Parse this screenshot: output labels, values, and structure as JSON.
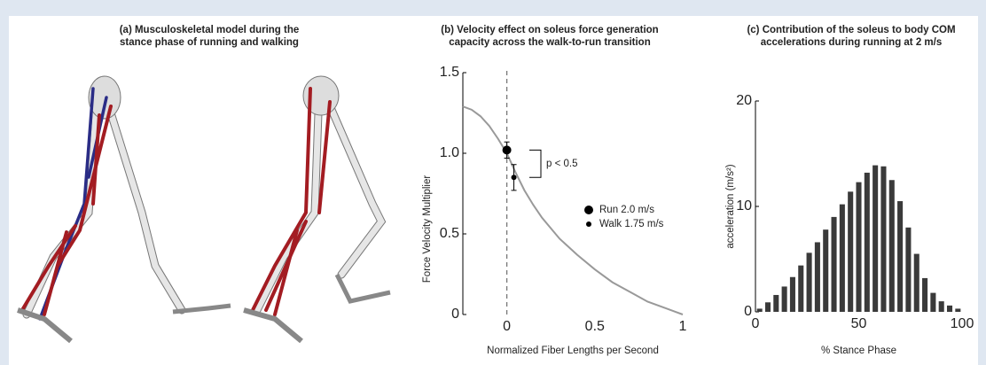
{
  "figure_a": {
    "title": [
      "(a) Musculoskeletal model during the",
      "stance phase of running and walking"
    ]
  },
  "chart_data": [
    {
      "type": "line",
      "title": [
        "(b) Velocity effect on soleus force generation",
        "capacity across the walk-to-run transition"
      ],
      "xlabel": "Normalized Fiber Lengths per Second",
      "ylabel": "Force Velocity Multiplier",
      "xlim": [
        -0.25,
        1
      ],
      "xticks": [
        0,
        0.5,
        1
      ],
      "ylim": [
        0,
        1.5
      ],
      "yticks": [
        0,
        0.5,
        {
          "value": 1,
          "label": "1.0"
        },
        1.5
      ],
      "curve": {
        "color": "#999999",
        "x": [
          -0.25,
          -0.2,
          -0.15,
          -0.1,
          -0.05,
          0,
          0.05,
          0.1,
          0.15,
          0.2,
          0.3,
          0.4,
          0.5,
          0.6,
          0.7,
          0.8,
          0.9,
          1.0
        ],
        "values": [
          1.29,
          1.27,
          1.23,
          1.17,
          1.09,
          1.0,
          0.88,
          0.77,
          0.68,
          0.6,
          0.47,
          0.37,
          0.28,
          0.2,
          0.14,
          0.08,
          0.04,
          0
        ]
      },
      "reference_x": 0,
      "series": [
        {
          "name": "Run 2.0 m/s",
          "color": "#000000",
          "x": [
            0
          ],
          "values": [
            1.02
          ],
          "errors": [
            0.05
          ]
        },
        {
          "name": "Walk 1.75 m/s",
          "color": "#000000",
          "x": [
            0.04
          ],
          "values": [
            0.85
          ],
          "errors": [
            0.08
          ]
        }
      ],
      "annotation": "p < 0.5"
    },
    {
      "type": "bar",
      "title": [
        "(c) Contribution of the soleus to body COM",
        "accelerations during running at 2 m/s"
      ],
      "xlabel": "% Stance Phase",
      "ylabel": "acceleration (m/s²)",
      "color": "#3a3a3a",
      "xlim": [
        0,
        100
      ],
      "xticks": [
        0,
        50,
        100
      ],
      "ylim": [
        0,
        20
      ],
      "yticks": [
        0,
        10,
        20
      ],
      "x": [
        2,
        6,
        10,
        14,
        18,
        22,
        26,
        30,
        34,
        38,
        42,
        46,
        50,
        54,
        58,
        62,
        66,
        70,
        74,
        78,
        82,
        86,
        90,
        94,
        98
      ],
      "values": [
        0.3,
        0.9,
        1.6,
        2.4,
        3.3,
        4.4,
        5.6,
        6.6,
        7.8,
        9.0,
        10.2,
        11.4,
        12.3,
        13.2,
        13.9,
        13.8,
        12.5,
        10.5,
        8.0,
        5.5,
        3.2,
        1.8,
        1.0,
        0.6,
        0.3
      ]
    }
  ]
}
